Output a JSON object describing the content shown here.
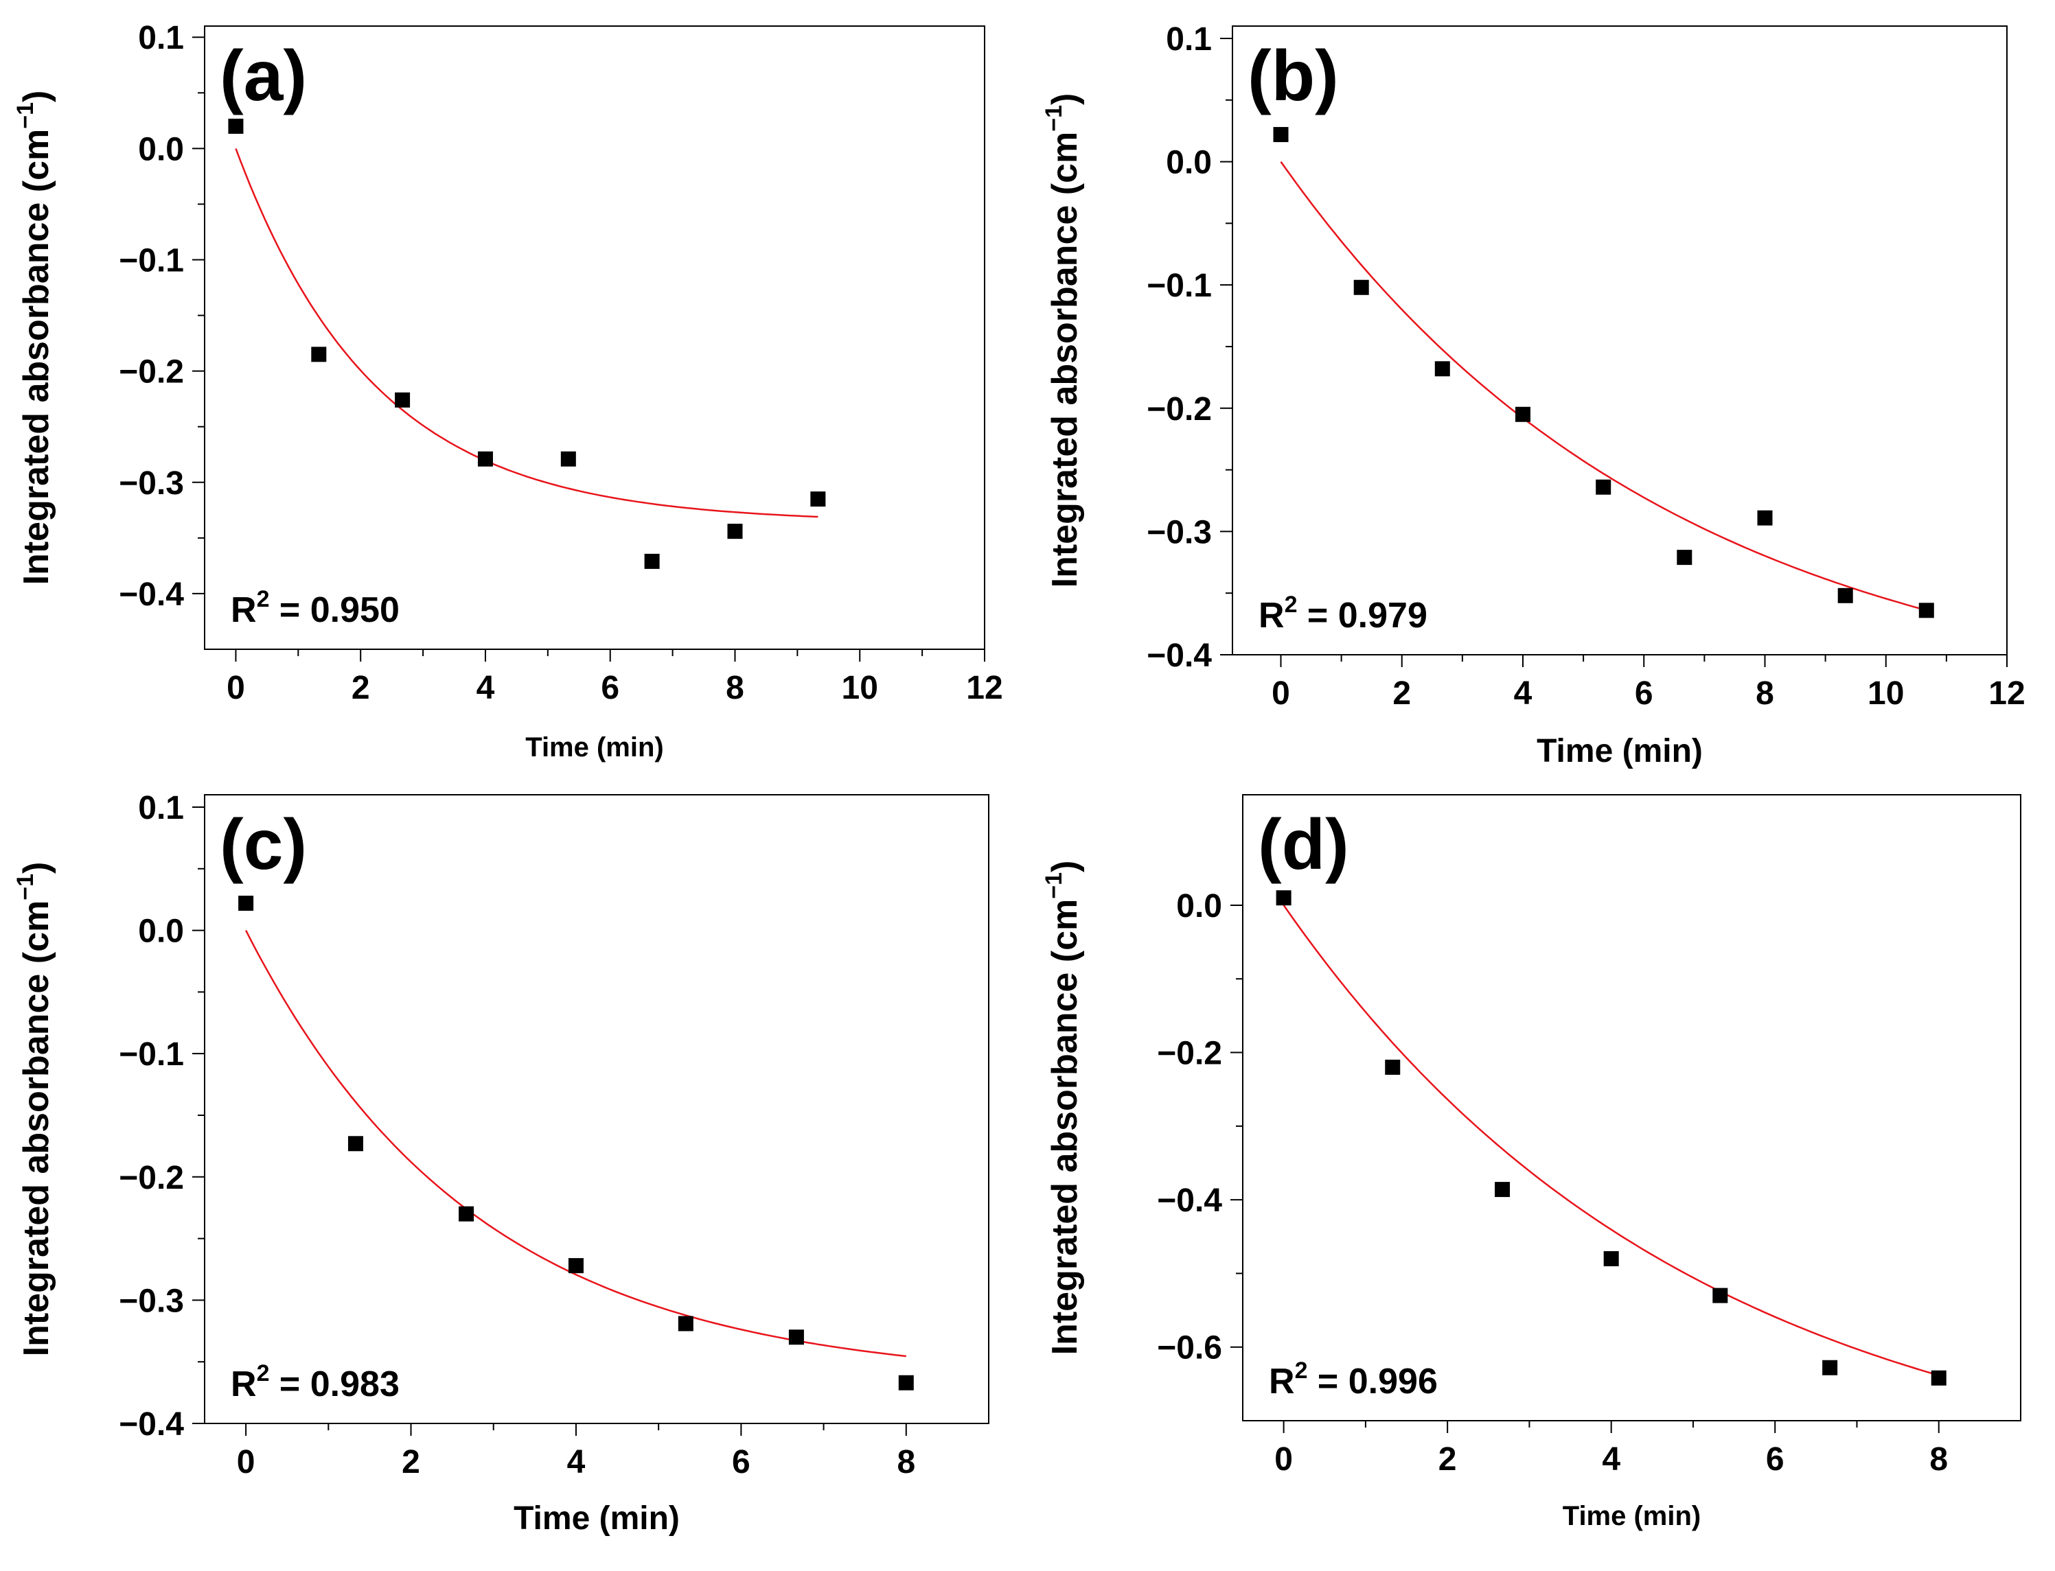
{
  "chart_data": [
    {
      "type": "scatter",
      "panel": "(a)",
      "xlabel": "Time (min)",
      "ylabel": "Integrated absorbance (cm",
      "ylabel_unit": "−1",
      "ylabel_close": ")",
      "xlim": [
        -0.5,
        12
      ],
      "ylim": [
        -0.45,
        0.11
      ],
      "xticks": [
        0,
        2,
        4,
        6,
        8,
        10,
        12
      ],
      "xtick_labels": [
        "0",
        "2",
        "4",
        "6",
        "8",
        "10",
        "12"
      ],
      "yticks": [
        0.1,
        0.0,
        -0.1,
        -0.2,
        -0.3,
        -0.4
      ],
      "ytick_labels": [
        "0.1",
        "0.0",
        "−0.1",
        "−0.2",
        "−0.3",
        "−0.4"
      ],
      "r2_text": "R",
      "r2_sup": "2",
      "r2_value": " = 0.950",
      "x": [
        0,
        1.33,
        2.67,
        4.0,
        5.33,
        6.67,
        8.0,
        9.33
      ],
      "y": [
        0.02,
        -0.185,
        -0.226,
        -0.279,
        -0.279,
        -0.371,
        -0.344,
        -0.315
      ],
      "fit": {
        "A": 0.336,
        "k": 0.45,
        "C": -0.336,
        "x_start": 0,
        "x_end": 9.33
      }
    },
    {
      "type": "scatter",
      "panel": "(b)",
      "xlabel": "Time (min)",
      "ylabel": "Integrated absorbance (cm",
      "ylabel_unit": "−1",
      "ylabel_close": ")",
      "xlim": [
        -0.8,
        12
      ],
      "ylim": [
        -0.4,
        0.11
      ],
      "xticks": [
        0,
        2,
        4,
        6,
        8,
        10,
        12
      ],
      "xtick_labels": [
        "0",
        "2",
        "4",
        "6",
        "8",
        "10",
        "12"
      ],
      "yticks": [
        0.1,
        0.0,
        -0.1,
        -0.2,
        -0.3,
        -0.4
      ],
      "ytick_labels": [
        "0.1",
        "0.0",
        "−0.1",
        "−0.2",
        "−0.3",
        "−0.4"
      ],
      "r2_text": "R",
      "r2_sup": "2",
      "r2_value": " = 0.979",
      "x": [
        0,
        1.33,
        2.67,
        4.0,
        5.33,
        6.67,
        8.0,
        9.33,
        10.67
      ],
      "y": [
        0.022,
        -0.102,
        -0.168,
        -0.205,
        -0.264,
        -0.321,
        -0.289,
        -0.352,
        -0.364
      ],
      "fit": {
        "A": 0.45,
        "k": 0.155,
        "C": -0.45,
        "x_start": 0,
        "x_end": 10.67
      }
    },
    {
      "type": "scatter",
      "panel": "(c)",
      "xlabel": "Time (min)",
      "ylabel": "Integrated absorbance (cm",
      "ylabel_unit": "−1",
      "ylabel_close": ")",
      "xlim": [
        -0.5,
        9
      ],
      "ylim": [
        -0.4,
        0.11
      ],
      "xticks": [
        0,
        2,
        4,
        6,
        8
      ],
      "xtick_labels": [
        "0",
        "2",
        "4",
        "6",
        "8"
      ],
      "yticks": [
        0.1,
        0.0,
        -0.1,
        -0.2,
        -0.3,
        -0.4
      ],
      "ytick_labels": [
        "0.1",
        "0.0",
        "−0.1",
        "−0.2",
        "−0.3",
        "−0.4"
      ],
      "r2_text": "R",
      "r2_sup": "2",
      "r2_value": " = 0.983",
      "x": [
        0,
        1.33,
        2.67,
        4.0,
        5.33,
        6.67,
        8.0
      ],
      "y": [
        0.022,
        -0.173,
        -0.23,
        -0.272,
        -0.319,
        -0.33,
        -0.367
      ],
      "fit": {
        "A": 0.366,
        "k": 0.36,
        "C": -0.366,
        "x_start": 0,
        "x_end": 8.0
      }
    },
    {
      "type": "scatter",
      "panel": "(d)",
      "xlabel": "Time (min)",
      "ylabel": "Integrated absorbance (cm",
      "ylabel_unit": "−1",
      "ylabel_close": ")",
      "xlim": [
        -0.5,
        9
      ],
      "ylim": [
        -0.7,
        0.15
      ],
      "xticks": [
        0,
        2,
        4,
        6,
        8
      ],
      "xtick_labels": [
        "0",
        "2",
        "4",
        "6",
        "8"
      ],
      "yticks": [
        0.0,
        -0.2,
        -0.4,
        -0.6
      ],
      "ytick_labels": [
        "0.0",
        "−0.2",
        "−0.4",
        "−0.6"
      ],
      "r2_text": "R",
      "r2_sup": "2",
      "r2_value": " = 0.996",
      "x": [
        0,
        1.33,
        2.67,
        4.0,
        5.33,
        6.67,
        8.0
      ],
      "y": [
        0.01,
        -0.22,
        -0.386,
        -0.48,
        -0.53,
        -0.628,
        -0.642
      ],
      "fit": {
        "A": 0.8,
        "k": 0.2,
        "C": -0.8,
        "x_start": 0,
        "x_end": 8.0
      }
    }
  ]
}
